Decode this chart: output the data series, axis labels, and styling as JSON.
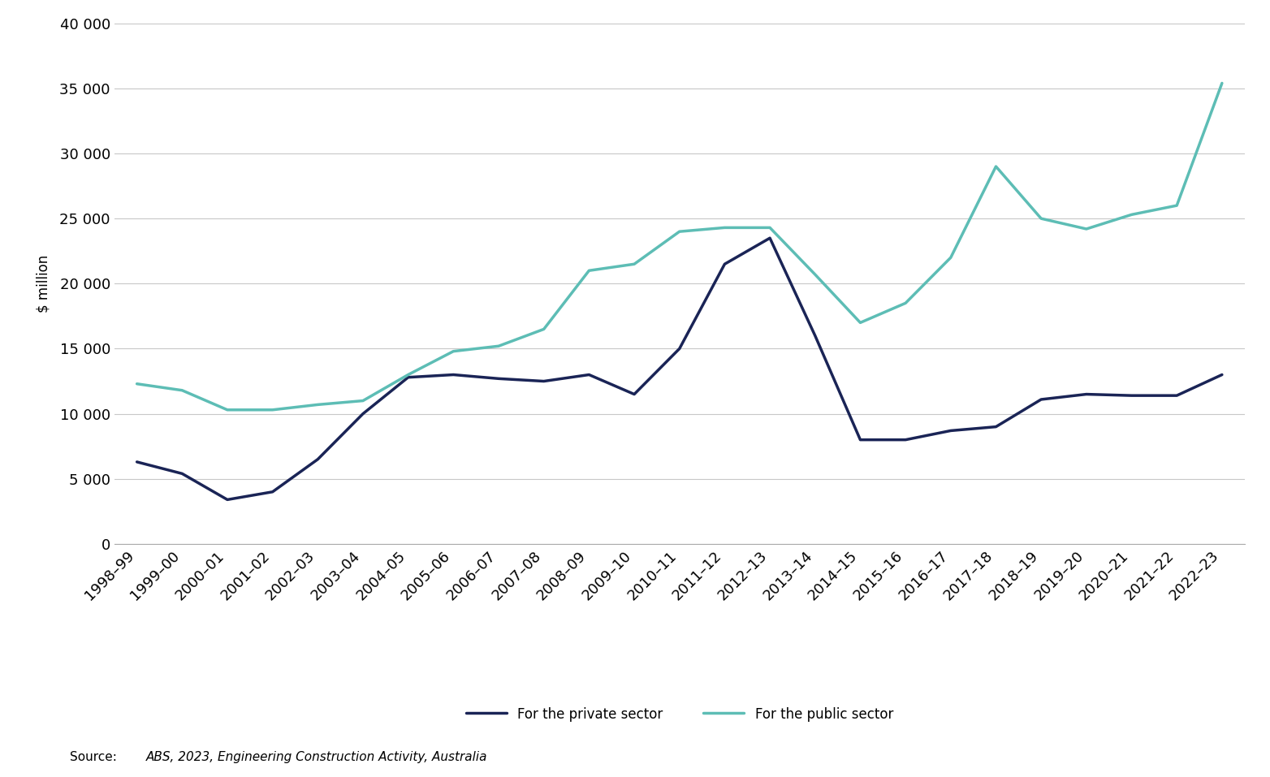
{
  "categories": [
    "1998–99",
    "1999–00",
    "2000–01",
    "2001–02",
    "2002–03",
    "2003–04",
    "2004–05",
    "2005–06",
    "2006–07",
    "2007–08",
    "2008–09",
    "2009–10",
    "2010–11",
    "2011–12",
    "2012–13",
    "2013–14",
    "2014–15",
    "2015–16",
    "2016–17",
    "2017–18",
    "2018–19",
    "2019–20",
    "2020–21",
    "2021–22",
    "2022–23"
  ],
  "private_sector": [
    6300,
    5400,
    3400,
    4000,
    6500,
    10000,
    12800,
    13000,
    12700,
    12500,
    13000,
    11500,
    15000,
    21500,
    23500,
    16000,
    8000,
    8000,
    8700,
    9000,
    11100,
    11500,
    11400,
    11400,
    13000
  ],
  "public_sector": [
    12300,
    11800,
    10300,
    10300,
    10700,
    11000,
    13000,
    14800,
    15200,
    16500,
    21000,
    21500,
    24000,
    24300,
    24300,
    20700,
    17000,
    18500,
    22000,
    29000,
    25000,
    24200,
    25300,
    26000,
    35400
  ],
  "private_color": "#1a2456",
  "public_color": "#5dbdb5",
  "private_label": "For the private sector",
  "public_label": "For the public sector",
  "ylabel": "$ million",
  "ylim": [
    0,
    40000
  ],
  "ytick_values": [
    0,
    5000,
    10000,
    15000,
    20000,
    25000,
    30000,
    35000,
    40000
  ],
  "ytick_labels": [
    "0",
    "5 000",
    "10 000",
    "15 000",
    "20 000",
    "25 000",
    "30 000",
    "35 000",
    "40 000"
  ],
  "source_label": "Source:",
  "source_body": "ABS, 2023, Engineering Construction Activity, Australia",
  "line_width": 2.5,
  "background_color": "#ffffff",
  "grid_color": "#c8c8c8",
  "tick_font_size": 13,
  "ylabel_font_size": 12,
  "legend_font_size": 12,
  "source_font_size": 11
}
